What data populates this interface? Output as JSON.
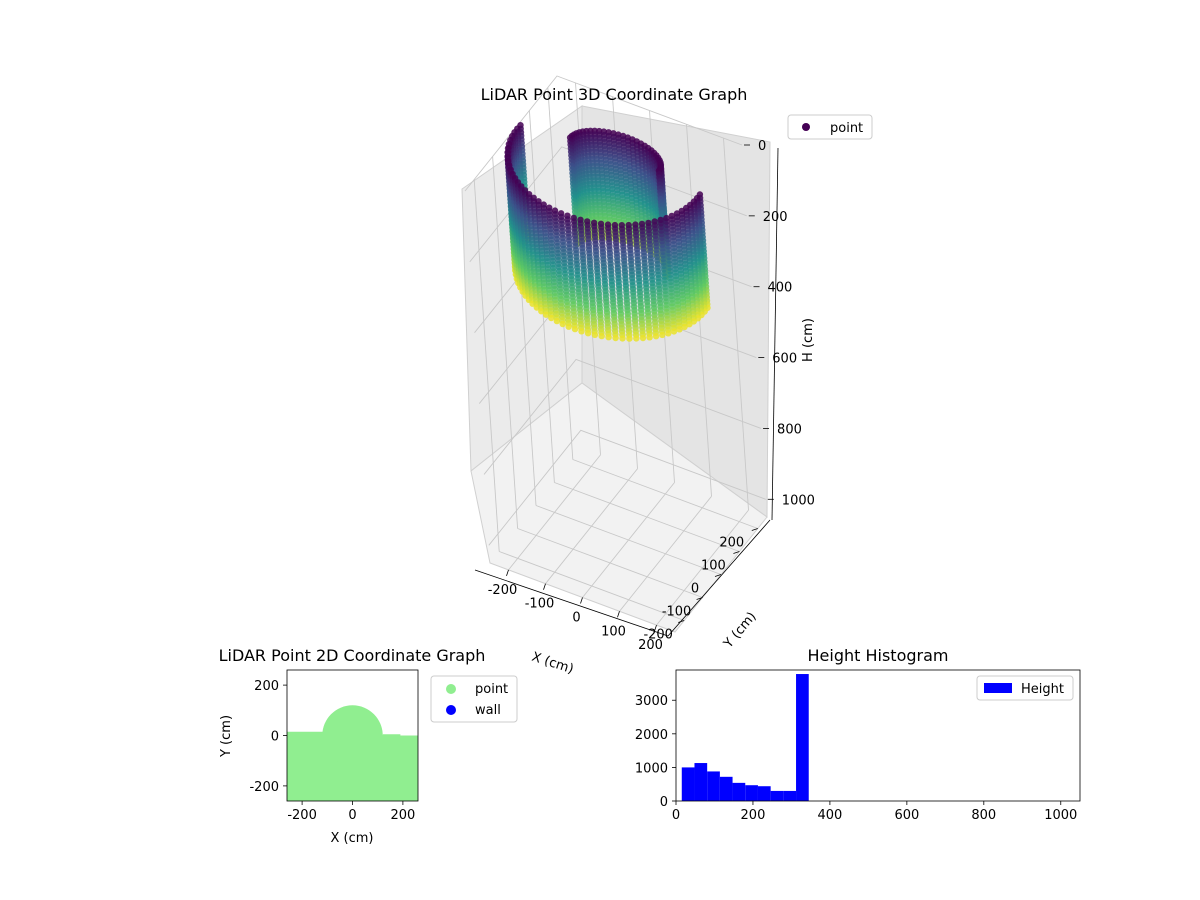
{
  "chart_data": [
    {
      "type": "scatter",
      "projection": "3d",
      "title": "LiDAR Point 3D Coordinate Graph",
      "xlabel": "X (cm)",
      "ylabel": "Y (cm)",
      "zlabel": "H (cm)",
      "xlim": [
        -250,
        250
      ],
      "ylim": [
        -250,
        250
      ],
      "zlim": [
        1050,
        0
      ],
      "z_inverted": true,
      "xticks": [
        -200,
        -100,
        0,
        100,
        200
      ],
      "yticks": [
        -200,
        -100,
        0,
        100,
        200
      ],
      "zticks": [
        0,
        200,
        400,
        600,
        800,
        1000
      ],
      "grid": true,
      "colormap": "viridis",
      "legend": {
        "entries": [
          "point"
        ],
        "placement": "upper right"
      },
      "series": [
        {
          "name": "point",
          "shapes": [
            {
              "shape": "arc-wall",
              "radius_cm": 250,
              "height_range_cm": [
                0,
                320
              ],
              "angle_span_deg": 180
            },
            {
              "shape": "half-cylinder",
              "radius_cm": 120,
              "height_range_cm": [
                0,
                300
              ]
            }
          ]
        }
      ],
      "colors": {
        "low": "#440154",
        "mid": "#21918c",
        "high": "#fde725"
      }
    },
    {
      "type": "scatter",
      "title": "LiDAR Point 2D Coordinate Graph",
      "xlabel": "X (cm)",
      "ylabel": "Y (cm)",
      "xlim": [
        -260,
        260
      ],
      "ylim": [
        -260,
        260
      ],
      "xticks": [
        -200,
        0,
        200
      ],
      "yticks": [
        -200,
        0,
        200
      ],
      "legend": {
        "entries": [
          "point",
          "wall"
        ],
        "placement": "outside right"
      },
      "series": [
        {
          "name": "point",
          "color": "#90ee90",
          "region": "filled area below y=0 plus semicircle r=120 at origin"
        },
        {
          "name": "wall",
          "color": "#0000ff"
        }
      ]
    },
    {
      "type": "bar",
      "subtype": "histogram",
      "title": "Height Histogram",
      "xlim": [
        0,
        1050
      ],
      "ylim": [
        0,
        3900
      ],
      "xticks": [
        0,
        200,
        400,
        600,
        800,
        1000
      ],
      "yticks": [
        0,
        1000,
        2000,
        3000
      ],
      "bin_width": 33,
      "bin_edges": [
        15,
        48,
        81,
        114,
        147,
        180,
        213,
        246,
        279,
        312,
        345
      ],
      "values": [
        1000,
        1130,
        880,
        720,
        540,
        470,
        440,
        300,
        300,
        3780
      ],
      "legend": {
        "entries": [
          "Height"
        ],
        "placement": "upper right"
      },
      "series": [
        {
          "name": "Height",
          "color": "#0000ff"
        }
      ]
    }
  ]
}
